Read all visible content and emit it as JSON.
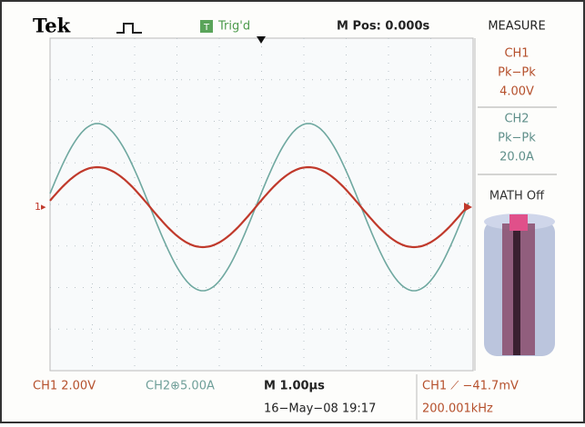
{
  "header": {
    "logo": "Tek",
    "trigger_icon": "T",
    "trigger_status": "Trig'd",
    "m_pos": "M Pos: 0.000s",
    "menu_title": "MEASURE"
  },
  "measure": [
    {
      "channel": "CH1",
      "type": "Pk−Pk",
      "value": "4.00V"
    },
    {
      "channel": "CH2",
      "type": "Pk−Pk",
      "value": "20.0A"
    }
  ],
  "math": "MATH Off",
  "ch1_marker": "1▸",
  "footer": {
    "ch1_scale": "CH1  2.00V",
    "ch2_scale": "CH2⊕5.00A",
    "timebase": "M 1.00µs",
    "timestamp": "16−May−08 19:17",
    "trigger": "CH1 ⟋ −41.7mV",
    "frequency": "200.001kHz"
  }
}
